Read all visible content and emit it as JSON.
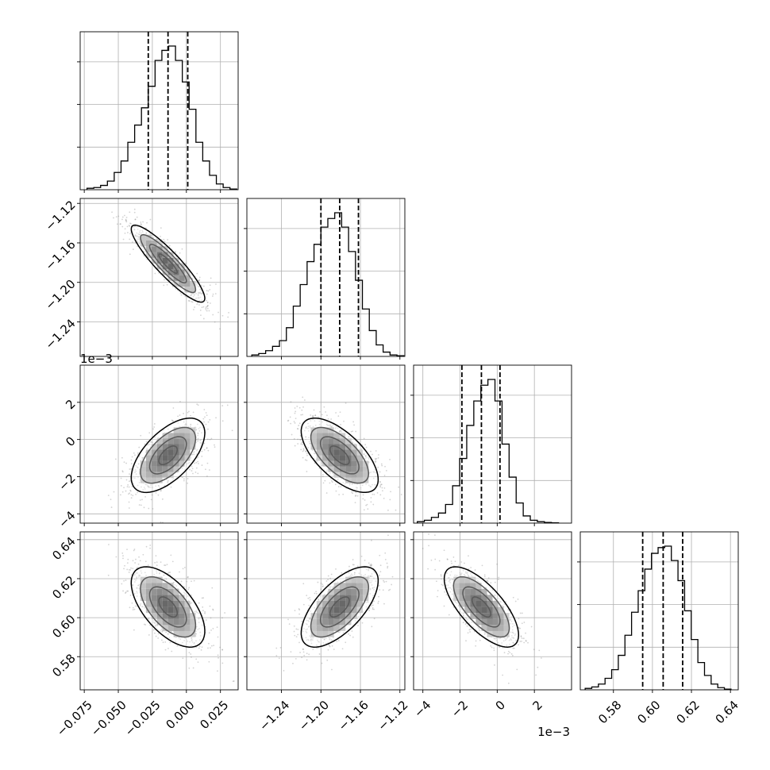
{
  "chart_data": {
    "type": "corner",
    "description_free": true,
    "parameters": [
      {
        "range": [
          -0.078,
          0.038
        ],
        "ticks": [
          -0.075,
          -0.05,
          -0.025,
          0.0,
          0.025
        ],
        "tick_labels": [
          "−0.075",
          "−0.050",
          "−0.025",
          "0.000",
          "0.025"
        ],
        "offset": "",
        "quantiles": [
          -0.028,
          -0.0135,
          0.001
        ],
        "hist_bins": [
          -0.073,
          -0.068,
          -0.063,
          -0.058,
          -0.053,
          -0.048,
          -0.043,
          -0.038,
          -0.033,
          -0.028,
          -0.023,
          -0.018,
          -0.013,
          -0.008,
          -0.003,
          0.002,
          0.007,
          0.012,
          0.017,
          0.022,
          0.027,
          0.032,
          0.037
        ],
        "hist_counts": [
          0.01,
          0.015,
          0.03,
          0.06,
          0.12,
          0.2,
          0.33,
          0.45,
          0.57,
          0.72,
          0.9,
          0.97,
          1.0,
          0.9,
          0.75,
          0.56,
          0.33,
          0.2,
          0.1,
          0.04,
          0.015,
          0.005
        ]
      },
      {
        "range": [
          -1.275,
          -1.115
        ],
        "ticks": [
          -1.24,
          -1.2,
          -1.16,
          -1.12
        ],
        "tick_labels": [
          "−1.24",
          "−1.20",
          "−1.16",
          "−1.12"
        ],
        "offset": "",
        "quantiles": [
          -1.2,
          -1.181,
          -1.162
        ],
        "hist_bins": [
          -1.27,
          -1.263,
          -1.256,
          -1.249,
          -1.242,
          -1.235,
          -1.228,
          -1.221,
          -1.214,
          -1.207,
          -1.2,
          -1.193,
          -1.186,
          -1.179,
          -1.172,
          -1.165,
          -1.158,
          -1.151,
          -1.144,
          -1.137,
          -1.13,
          -1.123,
          -1.116
        ],
        "hist_counts": [
          0.01,
          0.02,
          0.04,
          0.07,
          0.11,
          0.2,
          0.35,
          0.5,
          0.66,
          0.78,
          0.9,
          0.96,
          1.0,
          0.9,
          0.73,
          0.53,
          0.33,
          0.18,
          0.08,
          0.03,
          0.01,
          0.005
        ]
      },
      {
        "range": [
          -4.5,
          4.0
        ],
        "ticks": [
          -4,
          -2,
          0,
          2
        ],
        "tick_labels": [
          "−4",
          "−2",
          "0",
          "2"
        ],
        "offset": "1e−3",
        "quantiles": [
          -1.9,
          -0.85,
          0.15
        ],
        "hist_bins": [
          -4.3,
          -3.92,
          -3.54,
          -3.16,
          -2.78,
          -2.4,
          -2.02,
          -1.64,
          -1.26,
          -0.88,
          -0.5,
          -0.12,
          0.26,
          0.64,
          1.02,
          1.4,
          1.78,
          2.16,
          2.54,
          2.92,
          3.3
        ],
        "hist_counts": [
          0.01,
          0.02,
          0.04,
          0.07,
          0.13,
          0.26,
          0.45,
          0.68,
          0.85,
          0.96,
          1.0,
          0.85,
          0.55,
          0.32,
          0.14,
          0.05,
          0.02,
          0.01,
          0.005,
          0.002
        ]
      },
      {
        "range": [
          0.563,
          0.644
        ],
        "ticks": [
          0.58,
          0.6,
          0.62,
          0.64
        ],
        "tick_labels": [
          "0.58",
          "0.60",
          "0.62",
          "0.64"
        ],
        "offset": "",
        "quantiles": [
          0.595,
          0.6055,
          0.6155
        ],
        "hist_bins": [
          0.5655,
          0.5689,
          0.5723,
          0.5757,
          0.5791,
          0.5825,
          0.5859,
          0.5893,
          0.5927,
          0.5961,
          0.5995,
          0.6029,
          0.6063,
          0.6097,
          0.6131,
          0.6165,
          0.6199,
          0.6233,
          0.6267,
          0.6301,
          0.6335,
          0.6369,
          0.6403
        ],
        "hist_counts": [
          0.01,
          0.02,
          0.04,
          0.08,
          0.14,
          0.24,
          0.38,
          0.54,
          0.69,
          0.84,
          0.95,
          0.99,
          1.0,
          0.9,
          0.76,
          0.55,
          0.35,
          0.19,
          0.1,
          0.04,
          0.015,
          0.005
        ]
      }
    ],
    "pairs": [
      {
        "row": 1,
        "col": 0,
        "center": [
          -0.0135,
          -1.181
        ],
        "sigma": [
          0.0135,
          0.0195
        ],
        "rho": -0.9
      },
      {
        "row": 2,
        "col": 0,
        "center": [
          -0.0135,
          -0.85
        ],
        "sigma": [
          0.0135,
          1.0
        ],
        "rho": 0.6
      },
      {
        "row": 2,
        "col": 1,
        "center": [
          -1.181,
          -0.85
        ],
        "sigma": [
          0.0195,
          1.0
        ],
        "rho": -0.65
      },
      {
        "row": 3,
        "col": 0,
        "center": [
          -0.0135,
          0.6055
        ],
        "sigma": [
          0.0135,
          0.0103
        ],
        "rho": -0.6
      },
      {
        "row": 3,
        "col": 1,
        "center": [
          -1.181,
          0.6055
        ],
        "sigma": [
          0.0195,
          0.0103
        ],
        "rho": 0.65
      },
      {
        "row": 3,
        "col": 2,
        "center": [
          -0.85,
          0.6055
        ],
        "sigma": [
          1.0,
          0.0103
        ],
        "rho": -0.7
      }
    ],
    "contour_levels_sigma": [
      0.5,
      1.0,
      1.5,
      2.0
    ],
    "grid": true,
    "legend": "none",
    "colors": {
      "line": "#000000",
      "grid": "#b0b0b0",
      "scatter": "#808080"
    }
  }
}
